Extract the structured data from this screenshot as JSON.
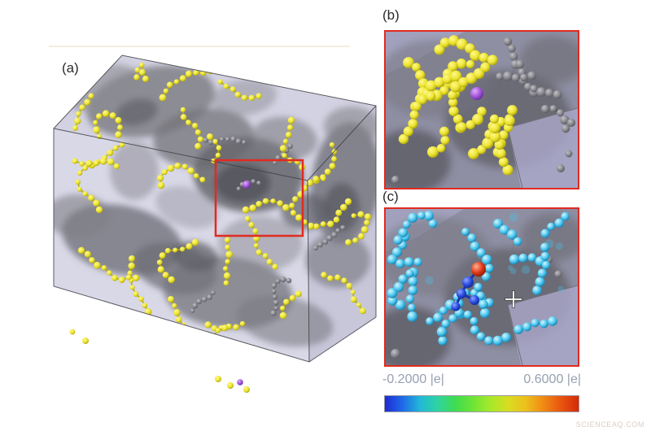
{
  "figure": {
    "panel_a_label": "(a)",
    "panel_b_label": "(b)",
    "panel_c_label": "(c)"
  },
  "colorbar": {
    "min_label": "-0.2000 |e|",
    "max_label": "0.6000 |e|",
    "gradient": [
      "#1f2ad4",
      "#1f6ae8",
      "#22b8d8",
      "#2fd4a0",
      "#3fdc50",
      "#6ee435",
      "#a8e82a",
      "#d8dc22",
      "#ecc01c",
      "#f08a14",
      "#e85510",
      "#d42a08"
    ]
  },
  "watermark": "SCIENCEAQ.COM",
  "colors": {
    "panel_border": "#e02b20",
    "highlight_box": "#e02b20",
    "atom_yellow": "#ece432",
    "atom_gray": "#85858b",
    "atom_purple": "#a055d8",
    "atom_cyan": "#49c6ee",
    "atom_blue": "#2a4ade",
    "atom_red": "#e03818",
    "surface_gray": "#6e6e74",
    "box_lavender": "#aeadcb"
  }
}
